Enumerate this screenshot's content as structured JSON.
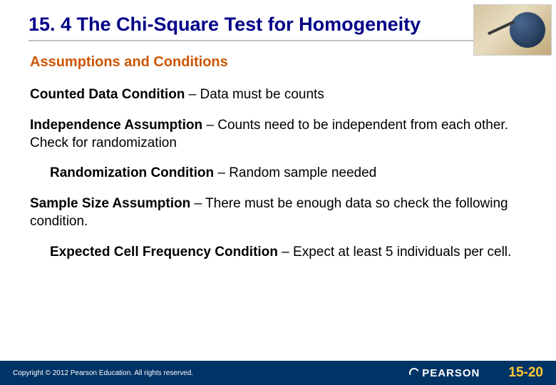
{
  "slide": {
    "title": "15. 4 The Chi-Square Test for Homogeneity",
    "subtitle": "Assumptions and Conditions",
    "items": [
      {
        "lead": "Counted Data Condition",
        "sep": " – ",
        "body": "Data must be counts",
        "indent": false
      },
      {
        "lead": "Independence Assumption",
        "sep": " –  ",
        "body": "Counts need to be independent from each other.  Check for randomization",
        "indent": false
      },
      {
        "lead": "Randomization Condition",
        "sep": " – ",
        "body": "Random sample needed",
        "indent": true
      },
      {
        "lead": "Sample Size Assumption",
        "sep": " –  ",
        "body": "There must be enough data so check the following condition.",
        "indent": false
      },
      {
        "lead": "Expected Cell Frequency Condition",
        "sep": " – ",
        "body": "Expect at least 5 individuals per cell.",
        "indent": true
      }
    ]
  },
  "footer": {
    "copyright": "Copyright © 2012  Pearson Education. All rights reserved.",
    "brand": "PEARSON",
    "page": "15-20"
  },
  "colors": {
    "title": "#000088",
    "subtitle": "#cc5500",
    "footer_bg": "#003366",
    "page_num": "#ffcc33",
    "underline": "#c0c0c0"
  }
}
